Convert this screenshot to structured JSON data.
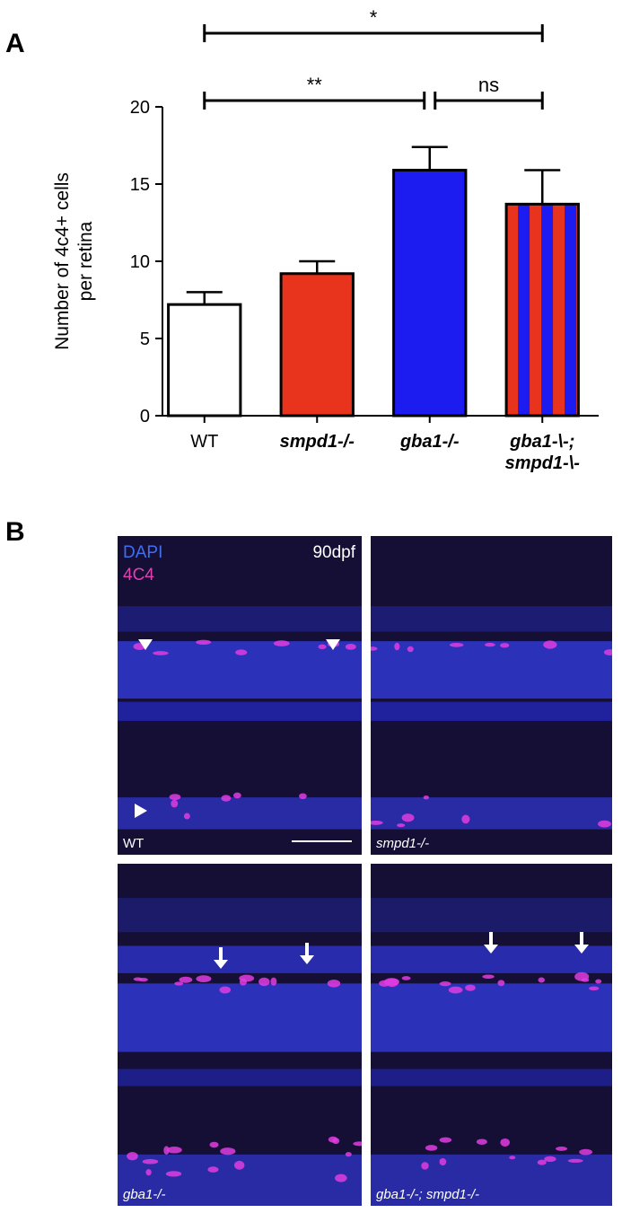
{
  "chart_data": {
    "type": "bar",
    "panel_label": "A",
    "ylabel": [
      "Number of 4c4+ cells",
      "per retina"
    ],
    "categories": [
      "WT",
      "smpd1-/-",
      "gba1-/-",
      [
        "gba1-\\-;",
        "smpd1-\\-"
      ]
    ],
    "values": [
      7.2,
      9.2,
      15.9,
      13.7
    ],
    "errors": [
      0.8,
      0.8,
      1.5,
      2.2
    ],
    "colors": [
      "#ffffff",
      "#e8341c",
      "#1c1cf0",
      [
        "#e8341c",
        "#1c1cf0"
      ]
    ],
    "ylim": [
      0,
      20
    ],
    "yticks": [
      0,
      5,
      10,
      15,
      20
    ],
    "annotations": [
      {
        "label": "*",
        "from": 0,
        "to": 3
      },
      {
        "label": "**",
        "from": 0,
        "to": 2
      },
      {
        "label": "ns",
        "from": 2,
        "to": 3
      }
    ]
  },
  "panel_b": {
    "panel_label": "B",
    "stains": [
      "DAPI",
      "4C4"
    ],
    "timepoint": "90dpf",
    "panels": [
      "WT",
      "smpd1-/-",
      "gba1-/-",
      "gba1-/-; smpd1-/-"
    ]
  }
}
